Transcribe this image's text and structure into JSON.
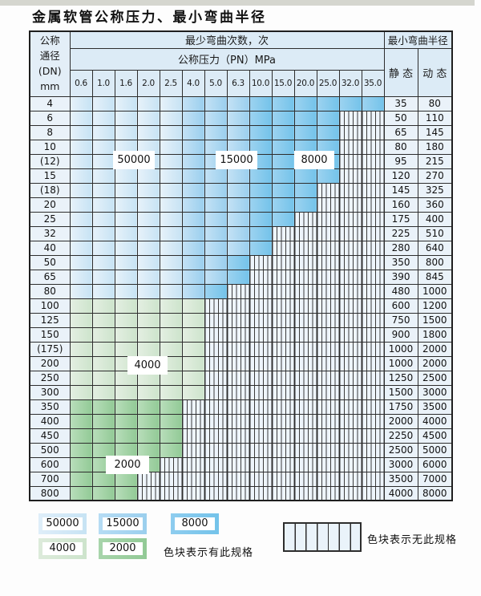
{
  "title": "金属软管公称压力、最小弯曲半径",
  "table": {
    "header": {
      "dn_label_lines": [
        "公称",
        "通径",
        "(DN)",
        "mm"
      ],
      "bend_cycles_label": "最少弯曲次数，次",
      "pressure_label": "公称压力（PN）MPa",
      "pressure_columns": [
        "0.6",
        "1.0",
        "1.6",
        "2.0",
        "2.5",
        "4.0",
        "5.0",
        "6.3",
        "10.0",
        "15.0",
        "20.0",
        "25.0",
        "32.0",
        "35.0"
      ],
      "radius_label": "最小弯曲半径",
      "static_label": "静 态",
      "dynamic_label": "动 态"
    },
    "rows": [
      {
        "dn": "4",
        "segments": [
          [
            "b1",
            5
          ],
          [
            "b2",
            3
          ],
          [
            "b3",
            6
          ]
        ],
        "static": "35",
        "dynamic": "80"
      },
      {
        "dn": "6",
        "segments": [
          [
            "b1",
            5
          ],
          [
            "b2",
            3
          ],
          [
            "b3",
            4
          ]
        ],
        "static": "50",
        "dynamic": "110"
      },
      {
        "dn": "8",
        "segments": [
          [
            "b1",
            5
          ],
          [
            "b2",
            3
          ],
          [
            "b3",
            4
          ]
        ],
        "static": "65",
        "dynamic": "145"
      },
      {
        "dn": "10",
        "segments": [
          [
            "b1",
            5
          ],
          [
            "b2",
            3
          ],
          [
            "b3",
            4
          ]
        ],
        "static": "80",
        "dynamic": "180"
      },
      {
        "dn": "(12)",
        "segments": [
          [
            "b1",
            5
          ],
          [
            "b2",
            3
          ],
          [
            "b3",
            4
          ]
        ],
        "static": "95",
        "dynamic": "215"
      },
      {
        "dn": "15",
        "segments": [
          [
            "b1",
            5
          ],
          [
            "b2",
            3
          ],
          [
            "b3",
            4
          ]
        ],
        "static": "120",
        "dynamic": "270"
      },
      {
        "dn": "(18)",
        "segments": [
          [
            "b1",
            5
          ],
          [
            "b2",
            3
          ],
          [
            "b3",
            3
          ]
        ],
        "static": "145",
        "dynamic": "325"
      },
      {
        "dn": "20",
        "segments": [
          [
            "b1",
            5
          ],
          [
            "b2",
            3
          ],
          [
            "b3",
            3
          ]
        ],
        "static": "160",
        "dynamic": "360"
      },
      {
        "dn": "25",
        "segments": [
          [
            "b1",
            5
          ],
          [
            "b2",
            3
          ],
          [
            "b3",
            2
          ]
        ],
        "static": "175",
        "dynamic": "400"
      },
      {
        "dn": "32",
        "segments": [
          [
            "b1",
            5
          ],
          [
            "b2",
            3
          ],
          [
            "b3",
            1
          ]
        ],
        "static": "225",
        "dynamic": "510"
      },
      {
        "dn": "40",
        "segments": [
          [
            "b1",
            5
          ],
          [
            "b2",
            3
          ],
          [
            "b3",
            1
          ]
        ],
        "static": "280",
        "dynamic": "640"
      },
      {
        "dn": "50",
        "segments": [
          [
            "b1",
            5
          ],
          [
            "b2",
            2
          ],
          [
            "b3",
            1
          ]
        ],
        "static": "350",
        "dynamic": "800"
      },
      {
        "dn": "65",
        "segments": [
          [
            "b1",
            5
          ],
          [
            "b2",
            2
          ],
          [
            "b3",
            1
          ]
        ],
        "static": "390",
        "dynamic": "845"
      },
      {
        "dn": "80",
        "segments": [
          [
            "b1",
            5
          ],
          [
            "b2",
            1
          ],
          [
            "b3",
            1
          ]
        ],
        "static": "480",
        "dynamic": "1000"
      },
      {
        "dn": "100",
        "segments": [
          [
            "g1",
            6
          ]
        ],
        "static": "600",
        "dynamic": "1200"
      },
      {
        "dn": "125",
        "segments": [
          [
            "g1",
            6
          ]
        ],
        "static": "750",
        "dynamic": "1500"
      },
      {
        "dn": "150",
        "segments": [
          [
            "g1",
            6
          ]
        ],
        "static": "900",
        "dynamic": "1800"
      },
      {
        "dn": "(175)",
        "segments": [
          [
            "g1",
            6
          ]
        ],
        "static": "1000",
        "dynamic": "2000"
      },
      {
        "dn": "200",
        "segments": [
          [
            "g1",
            6
          ]
        ],
        "static": "1000",
        "dynamic": "2000"
      },
      {
        "dn": "250",
        "segments": [
          [
            "g1",
            6
          ]
        ],
        "static": "1250",
        "dynamic": "2500"
      },
      {
        "dn": "300",
        "segments": [
          [
            "g1",
            6
          ]
        ],
        "static": "1500",
        "dynamic": "3000"
      },
      {
        "dn": "350",
        "segments": [
          [
            "g2",
            5
          ]
        ],
        "static": "1750",
        "dynamic": "3500"
      },
      {
        "dn": "400",
        "segments": [
          [
            "g2",
            5
          ]
        ],
        "static": "2000",
        "dynamic": "4000"
      },
      {
        "dn": "450",
        "segments": [
          [
            "g2",
            5
          ]
        ],
        "static": "2250",
        "dynamic": "4500"
      },
      {
        "dn": "500",
        "segments": [
          [
            "g2",
            5
          ]
        ],
        "static": "2500",
        "dynamic": "5000"
      },
      {
        "dn": "600",
        "segments": [
          [
            "g2",
            4
          ]
        ],
        "static": "3000",
        "dynamic": "6000"
      },
      {
        "dn": "700",
        "segments": [
          [
            "g2",
            3
          ]
        ],
        "static": "3500",
        "dynamic": "7000"
      },
      {
        "dn": "800",
        "segments": [
          [
            "g2",
            3
          ]
        ],
        "static": "4000",
        "dynamic": "8000"
      }
    ]
  },
  "overlays": {
    "v50000": "50000",
    "v15000": "15000",
    "v8000": "8000",
    "v4000": "4000",
    "v2000": "2000"
  },
  "legend": {
    "items": [
      {
        "label": "50000",
        "type": "b1",
        "color": "#cfe7f6"
      },
      {
        "label": "15000",
        "type": "b2",
        "color": "#a5d3f0"
      },
      {
        "label": "8000",
        "type": "b3",
        "color": "#7cc7ec"
      },
      {
        "label": "4000",
        "type": "g1",
        "color": "#d5e8d4"
      },
      {
        "label": "2000",
        "type": "g2",
        "color": "#9ccfa0"
      }
    ],
    "has_spec_text": "色块表示有此规格",
    "no_spec_text": "色块表示无此规格"
  }
}
